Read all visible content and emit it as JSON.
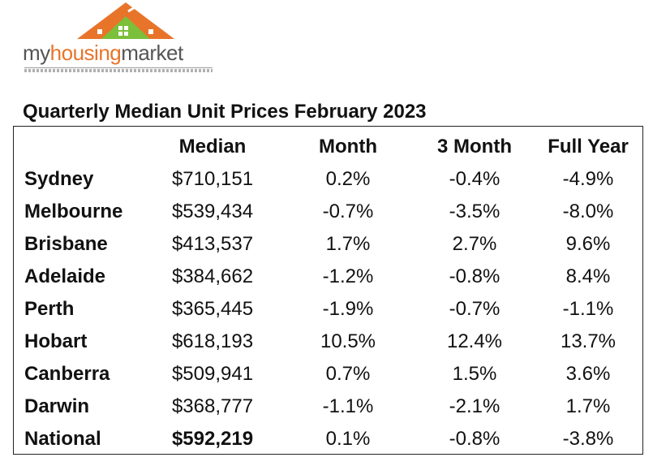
{
  "logo": {
    "part1": "my",
    "part2": "housing",
    "part3": "market"
  },
  "title": "Quarterly Median Unit Prices February 2023",
  "table": {
    "headers": [
      "",
      "Median",
      "Month",
      "3 Month",
      "Full Year"
    ],
    "rows": [
      {
        "city": "Sydney",
        "median": "$710,151",
        "month": "0.2%",
        "three_month": "-0.4%",
        "full_year": "-4.9%"
      },
      {
        "city": "Melbourne",
        "median": "$539,434",
        "month": "-0.7%",
        "three_month": "-3.5%",
        "full_year": "-8.0%"
      },
      {
        "city": "Brisbane",
        "median": "$413,537",
        "month": "1.7%",
        "three_month": "2.7%",
        "full_year": "9.6%"
      },
      {
        "city": "Adelaide",
        "median": "$384,662",
        "month": "-1.2%",
        "three_month": "-0.8%",
        "full_year": "8.4%"
      },
      {
        "city": "Perth",
        "median": "$365,445",
        "month": "-1.9%",
        "three_month": "-0.7%",
        "full_year": "-1.1%"
      },
      {
        "city": "Hobart",
        "median": "$618,193",
        "month": "10.5%",
        "three_month": "12.4%",
        "full_year": "13.7%"
      },
      {
        "city": "Canberra",
        "median": "$509,941",
        "month": "0.7%",
        "three_month": "1.5%",
        "full_year": "3.6%"
      },
      {
        "city": "Darwin",
        "median": "$368,777",
        "month": "-1.1%",
        "three_month": "-2.1%",
        "full_year": "1.7%"
      },
      {
        "city": "National",
        "median": "$592,219",
        "month": "0.1%",
        "three_month": "-0.8%",
        "full_year": "-3.8%"
      }
    ]
  },
  "colors": {
    "roof_orange": "#e8742a",
    "house_green": "#7bbf3a",
    "text": "#111111"
  }
}
